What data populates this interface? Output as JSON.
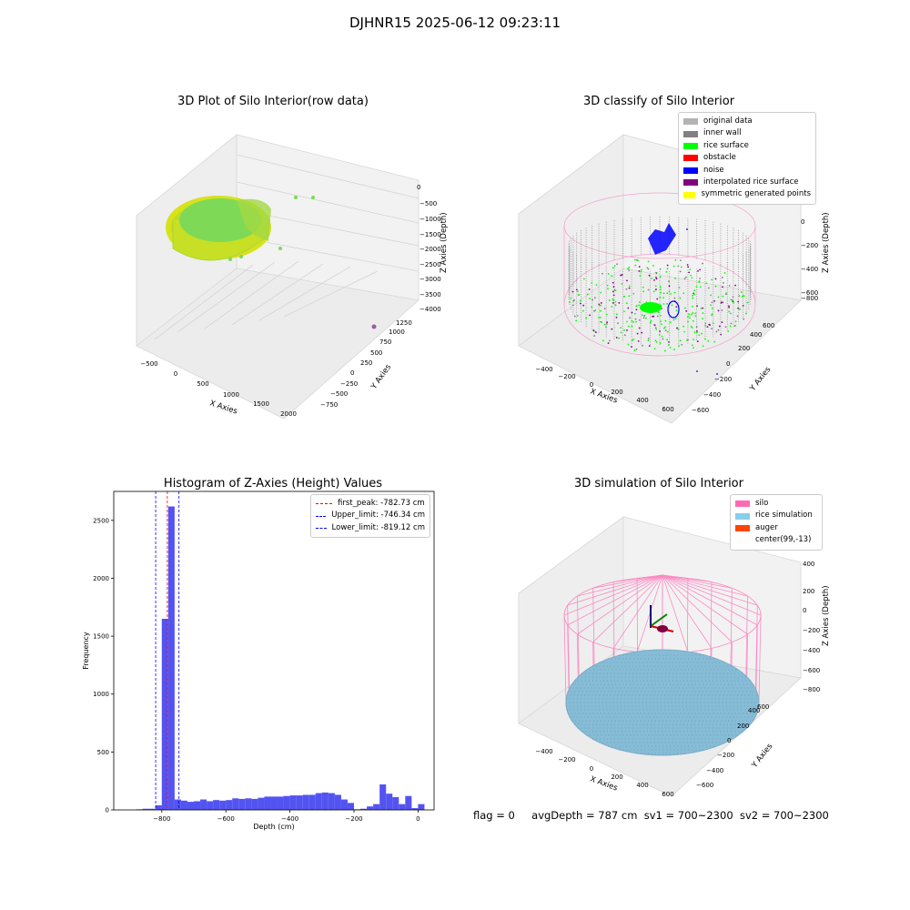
{
  "figure": {
    "title": "DJHNR15 2025-06-12 09:23:11",
    "status": {
      "flag": "flag = 0",
      "avg_depth": "avgDepth = 787 cm",
      "sv1": "sv1 = 700~2300",
      "sv2": "sv2 = 700~2300"
    }
  },
  "chart_data": [
    {
      "type": "scatter",
      "title": "3D Plot of Silo Interior(row data)",
      "xlabel": "X Axies",
      "ylabel": "Y Axies",
      "zlabel": "Z Axies (Depth)",
      "x_ticks": [
        "−500",
        "0",
        "500",
        "1000",
        "1500",
        "2000"
      ],
      "y_ticks": [
        "−750",
        "−500",
        "−250",
        "0",
        "250",
        "500",
        "750",
        "1000",
        "1250"
      ],
      "z_ticks": [
        "0",
        "−500",
        "−1000",
        "−1500",
        "−2000",
        "−2500",
        "−3000",
        "−3500",
        "−4000"
      ],
      "xlim": [
        -600,
        2200
      ],
      "ylim": [
        -800,
        1400
      ],
      "zlim": [
        -4200,
        200
      ],
      "colors": {
        "main": "#cde020",
        "inner": "#7ed957",
        "outlier": "#9c5aa0"
      }
    },
    {
      "type": "scatter",
      "title": "3D classify of Silo Interior",
      "xlabel": "X Axies",
      "ylabel": "Y Axies",
      "zlabel": "Z Axies (Depth)",
      "x_ticks": [
        "−400",
        "−200",
        "0",
        "200",
        "400",
        "600"
      ],
      "y_ticks": [
        "−600",
        "−400",
        "−200",
        "0",
        "200",
        "400",
        "600"
      ],
      "z_ticks": [
        "200",
        "0",
        "−200",
        "−400",
        "−600",
        "−800"
      ],
      "legend": [
        {
          "label": "original data",
          "color": "#b3b3b3"
        },
        {
          "label": "inner wall",
          "color": "#808080"
        },
        {
          "label": "rice surface",
          "color": "#00ff00"
        },
        {
          "label": "obstacle",
          "color": "#ff0000"
        },
        {
          "label": "noise",
          "color": "#0000ff"
        },
        {
          "label": "interpolated rice surface",
          "color": "#800080"
        },
        {
          "label": "symmetric generated points",
          "color": "#ffff00"
        }
      ]
    },
    {
      "type": "bar",
      "title": "Histogram of Z-Axies (Height) Values",
      "xlabel": "Depth (cm)",
      "ylabel": "Frequency",
      "xlim": [
        -950,
        50
      ],
      "ylim": [
        0,
        2750
      ],
      "x_ticks": [
        -800,
        -600,
        -400,
        -200,
        0
      ],
      "y_ticks": [
        0,
        500,
        1000,
        1500,
        2000,
        2500
      ],
      "bin_width": 20,
      "bins": [
        {
          "x0": -880,
          "v": 5
        },
        {
          "x0": -860,
          "v": 10
        },
        {
          "x0": -840,
          "v": 10
        },
        {
          "x0": -820,
          "v": 40
        },
        {
          "x0": -800,
          "v": 1650
        },
        {
          "x0": -780,
          "v": 2620
        },
        {
          "x0": -760,
          "v": 90
        },
        {
          "x0": -740,
          "v": 80
        },
        {
          "x0": -720,
          "v": 70
        },
        {
          "x0": -700,
          "v": 75
        },
        {
          "x0": -680,
          "v": 90
        },
        {
          "x0": -660,
          "v": 75
        },
        {
          "x0": -640,
          "v": 85
        },
        {
          "x0": -620,
          "v": 80
        },
        {
          "x0": -600,
          "v": 85
        },
        {
          "x0": -580,
          "v": 100
        },
        {
          "x0": -560,
          "v": 95
        },
        {
          "x0": -540,
          "v": 100
        },
        {
          "x0": -520,
          "v": 95
        },
        {
          "x0": -500,
          "v": 105
        },
        {
          "x0": -480,
          "v": 115
        },
        {
          "x0": -460,
          "v": 115
        },
        {
          "x0": -440,
          "v": 115
        },
        {
          "x0": -420,
          "v": 120
        },
        {
          "x0": -400,
          "v": 125
        },
        {
          "x0": -380,
          "v": 125
        },
        {
          "x0": -360,
          "v": 130
        },
        {
          "x0": -340,
          "v": 130
        },
        {
          "x0": -320,
          "v": 145
        },
        {
          "x0": -300,
          "v": 150
        },
        {
          "x0": -280,
          "v": 145
        },
        {
          "x0": -260,
          "v": 130
        },
        {
          "x0": -240,
          "v": 90
        },
        {
          "x0": -220,
          "v": 60
        },
        {
          "x0": -200,
          "v": 5
        },
        {
          "x0": -180,
          "v": 10
        },
        {
          "x0": -160,
          "v": 30
        },
        {
          "x0": -140,
          "v": 50
        },
        {
          "x0": -120,
          "v": 220
        },
        {
          "x0": -100,
          "v": 140
        },
        {
          "x0": -80,
          "v": 110
        },
        {
          "x0": -60,
          "v": 50
        },
        {
          "x0": -40,
          "v": 120
        },
        {
          "x0": -20,
          "v": 15
        },
        {
          "x0": 0,
          "v": 50
        }
      ],
      "bar_color": "#4a4af0",
      "lines": [
        {
          "label": "first_peak: -782.73 cm",
          "x": -782.73,
          "color": "#ff0000"
        },
        {
          "label": "Upper_limit: -746.34 cm",
          "x": -746.34,
          "color": "#0000ff"
        },
        {
          "label": "Lower_limit: -819.12 cm",
          "x": -819.12,
          "color": "#0000ff"
        }
      ]
    },
    {
      "type": "scatter",
      "title": "3D simulation of Silo Interior",
      "xlabel": "X Axies",
      "ylabel": "Y Axies",
      "zlabel": "Z Axies (Depth)",
      "x_ticks": [
        "−400",
        "−200",
        "0",
        "200",
        "400",
        "600"
      ],
      "y_ticks": [
        "−600",
        "−400",
        "−200",
        "0",
        "200",
        "400",
        "600"
      ],
      "z_ticks": [
        "400",
        "200",
        "0",
        "−200",
        "−400",
        "−600",
        "−800"
      ],
      "legend": [
        {
          "label": "silo",
          "color": "#ff69b4"
        },
        {
          "label": "rice simulation",
          "color": "#87ceeb"
        },
        {
          "label": "auger",
          "color": "#ff4500"
        },
        {
          "label": "center(99,-13)",
          "color": ""
        }
      ]
    }
  ]
}
